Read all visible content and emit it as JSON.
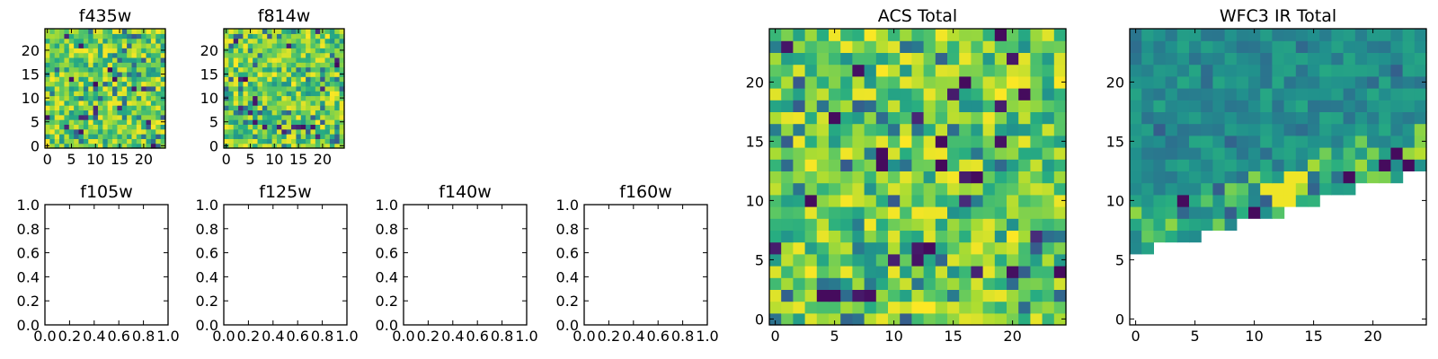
{
  "chart_data": [
    {
      "type": "heatmap",
      "title": "f435w",
      "grid_size": 25,
      "xticks": [
        0,
        5,
        10,
        15,
        20
      ],
      "yticks": [
        0,
        5,
        10,
        15,
        20
      ],
      "xlim": [
        -0.5,
        24.5
      ],
      "ylim": [
        -0.5,
        24.5
      ],
      "colormap": "viridis",
      "content": "random"
    },
    {
      "type": "heatmap",
      "title": "f814w",
      "grid_size": 25,
      "xticks": [
        0,
        5,
        10,
        15,
        20
      ],
      "yticks": [
        0,
        5,
        10,
        15,
        20
      ],
      "xlim": [
        -0.5,
        24.5
      ],
      "ylim": [
        -0.5,
        24.5
      ],
      "colormap": "viridis",
      "content": "random"
    },
    {
      "type": "heatmap",
      "title": "f105w",
      "xticks": [
        "0.0",
        "0.2",
        "0.4",
        "0.6",
        "0.8",
        "1.0"
      ],
      "yticks": [
        "0.0",
        "0.2",
        "0.4",
        "0.6",
        "0.8",
        "1.0"
      ],
      "xlim": [
        0,
        1
      ],
      "ylim": [
        0,
        1
      ],
      "content": "empty"
    },
    {
      "type": "heatmap",
      "title": "f125w",
      "xticks": [
        "0.0",
        "0.2",
        "0.4",
        "0.6",
        "0.8",
        "1.0"
      ],
      "yticks": [
        "0.0",
        "0.2",
        "0.4",
        "0.6",
        "0.8",
        "1.0"
      ],
      "xlim": [
        0,
        1
      ],
      "ylim": [
        0,
        1
      ],
      "content": "empty"
    },
    {
      "type": "heatmap",
      "title": "f140w",
      "xticks": [
        "0.0",
        "0.2",
        "0.4",
        "0.6",
        "0.8",
        "1.0"
      ],
      "yticks": [
        "0.0",
        "0.2",
        "0.4",
        "0.6",
        "0.8",
        "1.0"
      ],
      "xlim": [
        0,
        1
      ],
      "ylim": [
        0,
        1
      ],
      "content": "empty"
    },
    {
      "type": "heatmap",
      "title": "f160w",
      "xticks": [
        "0.0",
        "0.2",
        "0.4",
        "0.6",
        "0.8",
        "1.0"
      ],
      "yticks": [
        "0.0",
        "0.2",
        "0.4",
        "0.6",
        "0.8",
        "1.0"
      ],
      "xlim": [
        0,
        1
      ],
      "ylim": [
        0,
        1
      ],
      "content": "empty"
    },
    {
      "type": "heatmap",
      "title": "ACS Total",
      "grid_size": 25,
      "xticks": [
        0,
        5,
        10,
        15,
        20
      ],
      "yticks": [
        0,
        5,
        10,
        15,
        20
      ],
      "xlim": [
        -0.5,
        24.5
      ],
      "ylim": [
        -0.5,
        24.5
      ],
      "colormap": "viridis",
      "content": "random",
      "dark_pixels": [
        [
          4,
          2
        ],
        [
          5,
          2
        ],
        [
          9,
          13
        ],
        [
          9,
          14
        ],
        [
          13,
          6
        ],
        [
          16,
          20
        ],
        [
          17,
          12
        ],
        [
          21,
          19
        ],
        [
          24,
          4
        ],
        [
          19,
          24
        ],
        [
          14,
          15
        ],
        [
          3,
          10
        ]
      ]
    },
    {
      "type": "heatmap",
      "title": "WFC3 IR Total",
      "grid_size": 25,
      "xticks": [
        0,
        5,
        10,
        15,
        20
      ],
      "yticks": [
        0,
        5,
        10,
        15,
        20
      ],
      "xlim": [
        -0.5,
        24.5
      ],
      "ylim": [
        -0.5,
        24.5
      ],
      "colormap": "viridis",
      "content": "partial",
      "data_boundary": {
        "x": [
          0,
          24
        ],
        "y": [
          5.5,
          12.5
        ]
      },
      "dark_pixels": [
        [
          4,
          10
        ],
        [
          10,
          9
        ],
        [
          18,
          12
        ],
        [
          21,
          13
        ],
        [
          22,
          14
        ],
        [
          23,
          13
        ]
      ],
      "bright_pixels": [
        [
          11,
          11
        ],
        [
          12,
          11
        ],
        [
          13,
          11
        ],
        [
          13,
          12
        ],
        [
          14,
          12
        ],
        [
          13,
          10
        ],
        [
          12,
          10
        ]
      ]
    }
  ]
}
